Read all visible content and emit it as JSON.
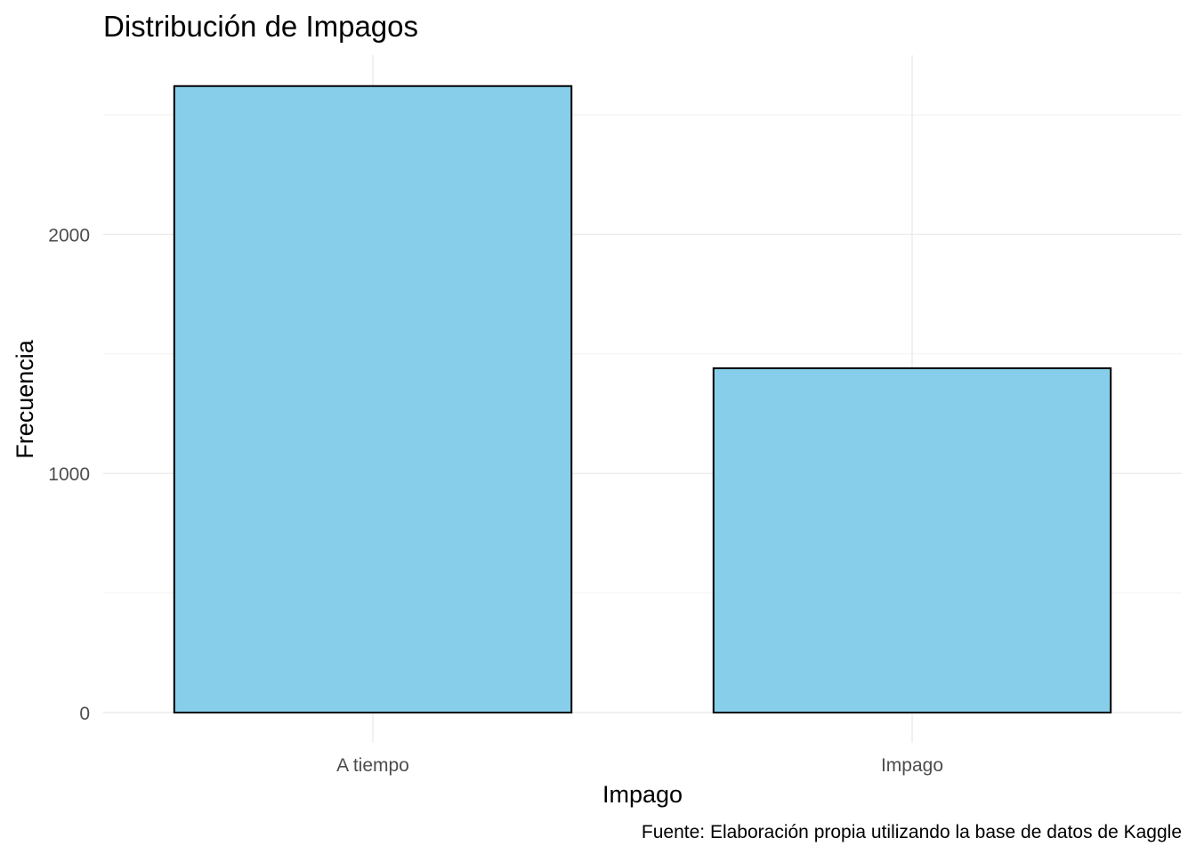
{
  "chart_data": {
    "type": "bar",
    "title": "Distribución de Impagos",
    "xlabel": "Impago",
    "ylabel": "Frecuencia",
    "caption": "Fuente: Elaboración propia utilizando la base de datos de Kaggle",
    "categories": [
      "A tiempo",
      "Impago"
    ],
    "values": [
      2620,
      1440
    ],
    "ylim": [
      0,
      2750
    ],
    "yticks": [
      0,
      1000,
      2000
    ],
    "ytick_labels": [
      "0",
      "1000",
      "2000"
    ],
    "y_minor_ticks": [
      500,
      1500,
      2500
    ],
    "grid": true,
    "legend": "none",
    "colors": {
      "bar_fill": "#87CEEB",
      "bar_outline": "#000000",
      "grid": "#ebebeb",
      "tick_text": "#4d4d4d"
    }
  }
}
